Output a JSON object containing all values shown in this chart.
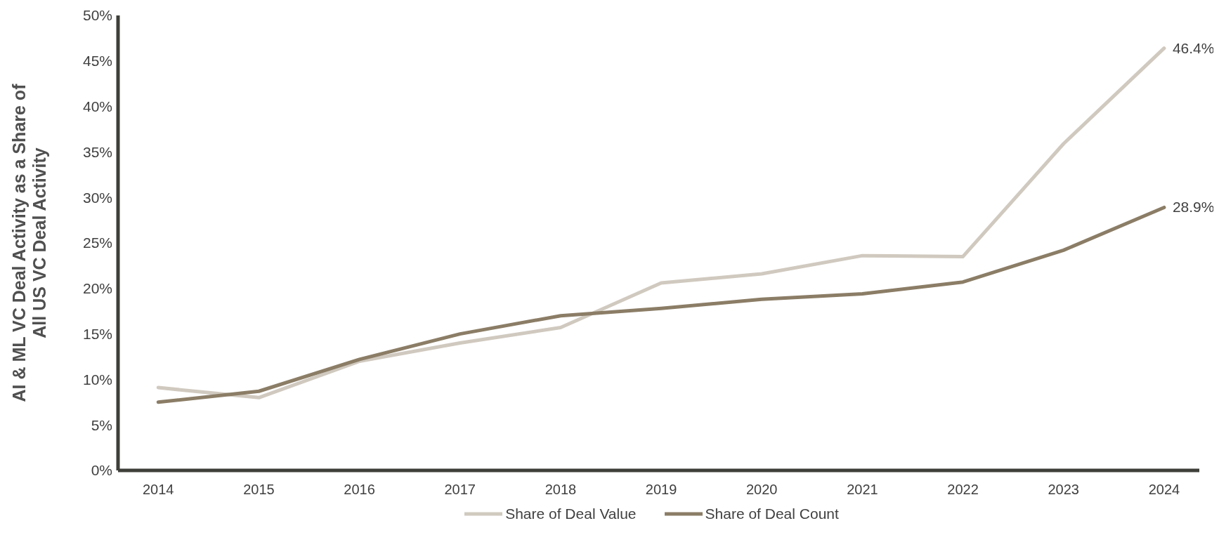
{
  "chart_data": {
    "type": "line",
    "ylabel": "AI & ML VC Deal Activity as a Share of All US VC Deal Activity",
    "categories": [
      "2014",
      "2015",
      "2016",
      "2017",
      "2018",
      "2019",
      "2020",
      "2021",
      "2022",
      "2023",
      "2024"
    ],
    "series": [
      {
        "name": "Share of Deal Value",
        "color": "#d0c9bf",
        "values": [
          9.1,
          8.0,
          12.0,
          14.0,
          15.7,
          20.6,
          21.6,
          23.6,
          23.5,
          35.9,
          46.4
        ],
        "value_labels": [
          null,
          null,
          null,
          null,
          null,
          null,
          null,
          null,
          null,
          null,
          "46.4%"
        ]
      },
      {
        "name": "Share of Deal Count",
        "color": "#8b7d66",
        "values": [
          7.5,
          8.7,
          12.2,
          15.0,
          17.0,
          17.8,
          18.8,
          19.4,
          20.7,
          24.2,
          28.9
        ],
        "value_labels": [
          null,
          null,
          null,
          null,
          null,
          null,
          null,
          null,
          null,
          null,
          "28.9%"
        ]
      }
    ],
    "ylim": [
      0,
      50
    ],
    "yticks": [
      {
        "value": 0,
        "label": "0%"
      },
      {
        "value": 5,
        "label": "5%"
      },
      {
        "value": 10,
        "label": "10%"
      },
      {
        "value": 15,
        "label": "15%"
      },
      {
        "value": 20,
        "label": "20%"
      },
      {
        "value": 25,
        "label": "25%"
      },
      {
        "value": 30,
        "label": "30%"
      },
      {
        "value": 35,
        "label": "35%"
      },
      {
        "value": 40,
        "label": "40%"
      },
      {
        "value": 45,
        "label": "45%"
      },
      {
        "value": 50,
        "label": "50%"
      }
    ],
    "grid": false,
    "legend": "bottom",
    "marker": "none",
    "line_style": "solid"
  }
}
